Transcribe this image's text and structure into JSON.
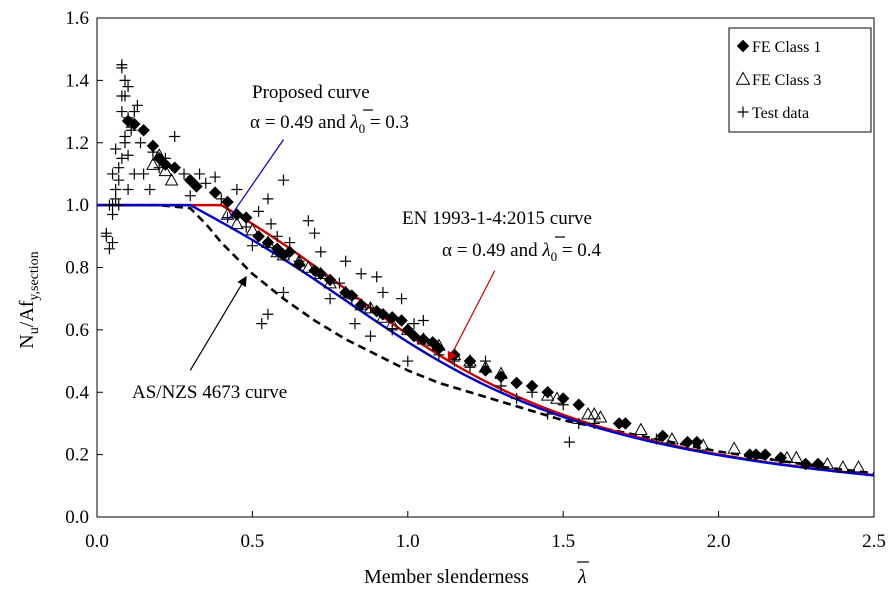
{
  "chart_data": {
    "type": "scatter",
    "xlim": [
      0,
      2.5
    ],
    "ylim": [
      0,
      1.6
    ],
    "x_ticks": [
      "0.0",
      "0.5",
      "1.0",
      "1.5",
      "2.0",
      "2.5"
    ],
    "y_ticks": [
      "0.0",
      "0.2",
      "0.4",
      "0.6",
      "0.8",
      "1.0",
      "1.2",
      "1.4",
      "1.6"
    ],
    "xlabel": "Member slenderness",
    "xlabel_symbol": "λ",
    "ylabel_main": "N",
    "ylabel_sub1": "u",
    "ylabel_mid": "/Af",
    "ylabel_sub2": "y,section",
    "grid": false,
    "legend_position": "top-right",
    "legend": [
      {
        "label": "FE Class 1",
        "marker": "filled-diamond"
      },
      {
        "label": "FE Class 3",
        "marker": "open-triangle"
      },
      {
        "label": "Test data",
        "marker": "plus"
      }
    ],
    "curves": [
      {
        "name": "Proposed curve",
        "alpha": 0.49,
        "lambda0": 0.3,
        "color": "#0000cc",
        "style": "solid"
      },
      {
        "name": "EN 1993-1-4:2015 curve",
        "alpha": 0.49,
        "lambda0": 0.4,
        "color": "#cc0000",
        "style": "solid"
      },
      {
        "name": "AS/NZS 4673 curve",
        "color": "#000000",
        "style": "dashed",
        "x": [
          0.0,
          0.2,
          0.3,
          0.35,
          0.4,
          0.5,
          0.6,
          0.7,
          0.8,
          0.9,
          1.0,
          1.1,
          1.2,
          1.3,
          1.4,
          1.5,
          1.6,
          1.7,
          1.8,
          1.9,
          2.0,
          2.1,
          2.2,
          2.3,
          2.4,
          2.5
        ],
        "y": [
          1.0,
          1.0,
          0.99,
          0.94,
          0.88,
          0.78,
          0.7,
          0.63,
          0.57,
          0.52,
          0.47,
          0.43,
          0.4,
          0.37,
          0.34,
          0.31,
          0.29,
          0.27,
          0.25,
          0.23,
          0.21,
          0.195,
          0.18,
          0.165,
          0.152,
          0.14
        ]
      }
    ],
    "series": [
      {
        "name": "FE Class 1",
        "marker": "filled-diamond",
        "x": [
          0.1,
          0.12,
          0.15,
          0.18,
          0.2,
          0.22,
          0.25,
          0.3,
          0.32,
          0.38,
          0.42,
          0.45,
          0.48,
          0.52,
          0.55,
          0.58,
          0.6,
          0.62,
          0.65,
          0.7,
          0.72,
          0.75,
          0.8,
          0.82,
          0.85,
          0.9,
          0.92,
          0.95,
          0.98,
          1.0,
          1.02,
          1.05,
          1.08,
          1.1,
          1.15,
          1.2,
          1.25,
          1.3,
          1.35,
          1.4,
          1.45,
          1.5,
          1.55,
          1.68,
          1.7,
          1.82,
          1.9,
          1.93,
          2.1,
          2.12,
          2.15,
          2.2,
          2.28,
          2.32
        ],
        "y": [
          1.27,
          1.26,
          1.24,
          1.19,
          1.15,
          1.13,
          1.12,
          1.08,
          1.06,
          1.04,
          1.01,
          0.97,
          0.96,
          0.9,
          0.88,
          0.86,
          0.84,
          0.85,
          0.81,
          0.79,
          0.78,
          0.76,
          0.72,
          0.71,
          0.68,
          0.66,
          0.65,
          0.64,
          0.63,
          0.6,
          0.58,
          0.57,
          0.56,
          0.54,
          0.52,
          0.5,
          0.47,
          0.45,
          0.43,
          0.42,
          0.4,
          0.38,
          0.36,
          0.3,
          0.3,
          0.26,
          0.24,
          0.24,
          0.2,
          0.2,
          0.2,
          0.19,
          0.17,
          0.17
        ]
      },
      {
        "name": "FE Class 3",
        "marker": "open-triangle",
        "x": [
          0.18,
          0.2,
          0.22,
          0.24,
          0.42,
          0.45,
          0.5,
          0.55,
          0.58,
          0.6,
          0.65,
          0.68,
          0.72,
          0.75,
          0.8,
          0.85,
          0.88,
          0.92,
          0.95,
          1.0,
          1.05,
          1.1,
          1.15,
          1.2,
          1.25,
          1.3,
          1.45,
          1.48,
          1.58,
          1.6,
          1.62,
          1.75,
          1.85,
          1.95,
          2.05,
          2.22,
          2.25,
          2.35,
          2.4,
          2.45
        ],
        "y": [
          1.13,
          1.16,
          1.11,
          1.08,
          0.97,
          0.94,
          0.92,
          0.88,
          0.85,
          0.84,
          0.82,
          0.8,
          0.78,
          0.75,
          0.72,
          0.68,
          0.67,
          0.64,
          0.62,
          0.6,
          0.57,
          0.55,
          0.52,
          0.5,
          0.48,
          0.46,
          0.39,
          0.38,
          0.33,
          0.33,
          0.32,
          0.28,
          0.25,
          0.23,
          0.22,
          0.19,
          0.19,
          0.17,
          0.16,
          0.16
        ]
      },
      {
        "name": "Test data",
        "marker": "plus",
        "x": [
          0.03,
          0.04,
          0.05,
          0.05,
          0.06,
          0.06,
          0.07,
          0.07,
          0.08,
          0.08,
          0.08,
          0.09,
          0.09,
          0.1,
          0.1,
          0.11,
          0.12,
          0.13,
          0.05,
          0.06,
          0.07,
          0.08,
          0.09,
          0.1,
          0.11,
          0.03,
          0.04,
          0.05,
          0.08,
          0.09,
          0.1,
          0.12,
          0.14,
          0.15,
          0.17,
          0.18,
          0.2,
          0.22,
          0.25,
          0.28,
          0.3,
          0.33,
          0.35,
          0.38,
          0.4,
          0.42,
          0.45,
          0.48,
          0.5,
          0.52,
          0.55,
          0.56,
          0.58,
          0.6,
          0.62,
          0.65,
          0.68,
          0.7,
          0.72,
          0.75,
          0.78,
          0.8,
          0.82,
          0.85,
          0.88,
          0.9,
          0.92,
          0.95,
          0.98,
          1.0,
          1.02,
          1.05,
          1.08,
          1.1,
          1.15,
          1.2,
          1.25,
          1.3,
          1.35,
          1.4,
          1.45,
          1.5,
          1.52,
          1.55,
          1.6,
          1.8,
          2.1,
          0.83,
          0.88,
          0.6,
          0.55,
          0.53
        ],
        "y": [
          0.9,
          0.86,
          0.88,
          0.97,
          1.05,
          1.18,
          1.0,
          1.12,
          1.35,
          1.44,
          1.3,
          1.2,
          1.4,
          1.05,
          1.38,
          1.25,
          1.1,
          1.32,
          1.0,
          1.02,
          1.08,
          1.15,
          1.22,
          1.28,
          1.24,
          0.91,
          1.0,
          1.1,
          1.45,
          1.35,
          1.16,
          1.3,
          1.2,
          1.1,
          1.05,
          1.17,
          1.12,
          1.15,
          1.22,
          1.1,
          1.03,
          1.1,
          1.07,
          1.09,
          1.02,
          0.96,
          1.05,
          0.93,
          0.87,
          0.98,
          1.02,
          0.94,
          0.9,
          1.08,
          0.88,
          0.82,
          0.95,
          0.91,
          0.85,
          0.7,
          0.75,
          0.82,
          0.7,
          0.78,
          0.58,
          0.77,
          0.72,
          0.6,
          0.7,
          0.5,
          0.62,
          0.63,
          0.55,
          0.52,
          0.5,
          0.48,
          0.5,
          0.42,
          0.38,
          0.4,
          0.33,
          0.36,
          0.24,
          0.3,
          0.3,
          0.25,
          0.2,
          0.62,
          0.67,
          0.72,
          0.65,
          0.62
        ]
      }
    ],
    "annotations": [
      {
        "line1": "Proposed curve",
        "line2_prefix": "α = 0.49 and",
        "line2_symbol": "λ",
        "line2_sub": "0",
        "line2_suffix": " = 0.3",
        "arrow_color": "#0000cc"
      },
      {
        "line1": "EN 1993-1-4:2015 curve",
        "line2_prefix": "α = 0.49 and",
        "line2_symbol": "λ",
        "line2_sub": "0",
        "line2_suffix": " = 0.4",
        "arrow_color": "#cc0000"
      },
      {
        "line1": "AS/NZS 4673 curve",
        "arrow_color": "#000000"
      }
    ]
  }
}
